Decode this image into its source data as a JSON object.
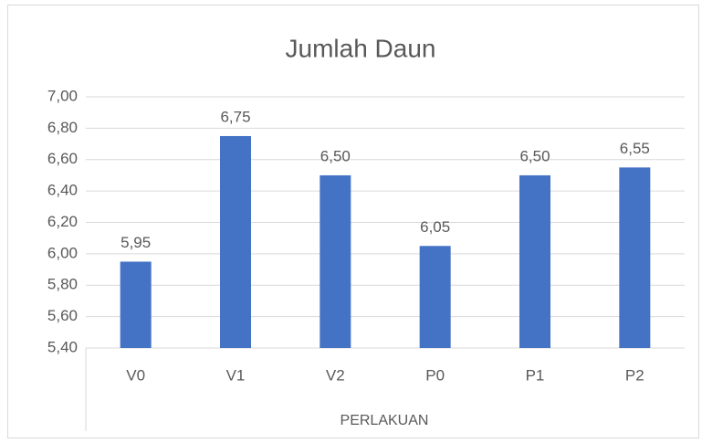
{
  "chart_data": {
    "type": "bar",
    "title": "Jumlah Daun",
    "x_label": "PERLAKUAN",
    "categories": [
      "V0",
      "V1",
      "V2",
      "P0",
      "P1",
      "P2"
    ],
    "values": [
      5.95,
      6.75,
      6.5,
      6.05,
      6.5,
      6.55
    ],
    "value_labels": [
      "5,95",
      "6,75",
      "6,50",
      "6,05",
      "6,50",
      "6,55"
    ],
    "color": "#4472c4",
    "ylim": [
      5.4,
      7.0
    ],
    "yticks": [
      {
        "value": 5.4,
        "label": "5,40"
      },
      {
        "value": 5.6,
        "label": "5,60"
      },
      {
        "value": 5.8,
        "label": "5,80"
      },
      {
        "value": 6.0,
        "label": "6,00"
      },
      {
        "value": 6.2,
        "label": "6,20"
      },
      {
        "value": 6.4,
        "label": "6,40"
      },
      {
        "value": 6.6,
        "label": "6,60"
      },
      {
        "value": 6.8,
        "label": "6,80"
      },
      {
        "value": 7.0,
        "label": "7,00"
      }
    ],
    "grid": true
  }
}
